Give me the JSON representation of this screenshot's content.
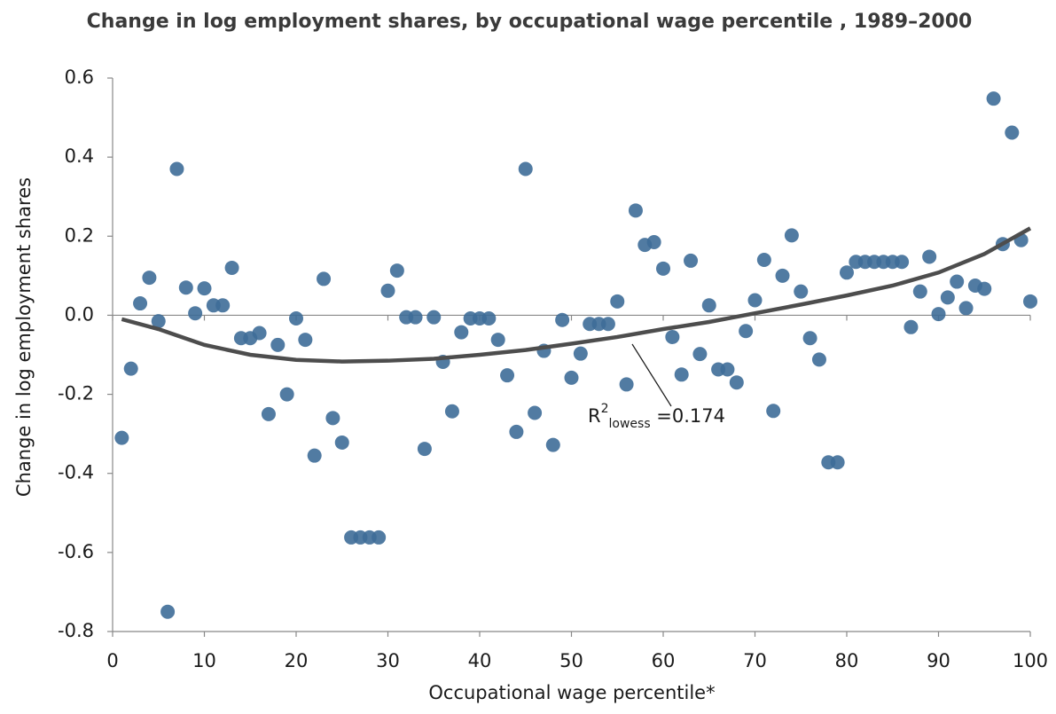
{
  "chart_data": {
    "type": "scatter",
    "title": "Change in log employment shares, by occupational wage percentile , 1989–2000",
    "x_label": "Occupational wage percentile*",
    "y_label": "Change in log employment shares",
    "xlim": [
      0,
      100
    ],
    "xticks": [
      0,
      10,
      20,
      30,
      40,
      50,
      60,
      70,
      80,
      90,
      100
    ],
    "ylim": [
      -0.8,
      0.6
    ],
    "yticks": [
      -0.8,
      -0.6,
      -0.4,
      -0.2,
      {
        "value": 0,
        "label": "0.0"
      },
      0.2,
      0.4,
      0.6
    ],
    "series": [
      {
        "color": "#3e6d98",
        "x": [
          1,
          2,
          3,
          4,
          5,
          6,
          7,
          8,
          9,
          10,
          11,
          12,
          13,
          14,
          15,
          16,
          17,
          18,
          19,
          20,
          21,
          22,
          23,
          24,
          25,
          26,
          27,
          28,
          29,
          30,
          31,
          32,
          33,
          34,
          35,
          36,
          37,
          38,
          39,
          40,
          41,
          42,
          43,
          44,
          45,
          46,
          47,
          48,
          49,
          50,
          51,
          52,
          53,
          54,
          55,
          56,
          57,
          58,
          59,
          60,
          61,
          62,
          63,
          64,
          65,
          66,
          67,
          68,
          69,
          70,
          71,
          72,
          73,
          74,
          75,
          76,
          77,
          78,
          79,
          80,
          81,
          82,
          83,
          84,
          85,
          86,
          87,
          88,
          89,
          90,
          91,
          92,
          93,
          94,
          95,
          96,
          97,
          98,
          99,
          100
        ],
        "values": [
          -0.31,
          -0.135,
          0.03,
          0.095,
          -0.015,
          -0.75,
          0.37,
          0.07,
          0.005,
          0.068,
          0.025,
          0.025,
          0.12,
          -0.058,
          -0.058,
          -0.045,
          -0.25,
          -0.075,
          -0.2,
          -0.008,
          -0.062,
          -0.355,
          0.092,
          -0.26,
          -0.322,
          -0.562,
          -0.562,
          -0.562,
          -0.562,
          0.062,
          0.113,
          -0.005,
          -0.005,
          -0.338,
          -0.005,
          -0.118,
          -0.243,
          -0.043,
          -0.008,
          -0.008,
          -0.008,
          -0.062,
          -0.152,
          -0.295,
          0.37,
          -0.247,
          -0.09,
          -0.328,
          -0.012,
          -0.158,
          -0.097,
          -0.022,
          -0.022,
          -0.022,
          0.035,
          -0.175,
          0.265,
          0.178,
          0.185,
          0.118,
          -0.055,
          -0.15,
          0.138,
          -0.098,
          0.025,
          -0.137,
          -0.137,
          -0.17,
          -0.04,
          0.038,
          0.14,
          -0.242,
          0.1,
          0.202,
          0.06,
          -0.058,
          -0.112,
          -0.372,
          -0.372,
          0.108,
          0.135,
          0.135,
          0.135,
          0.135,
          0.135,
          0.135,
          -0.03,
          0.06,
          0.148,
          0.003,
          0.045,
          0.085,
          0.018,
          0.075,
          0.067,
          0.548,
          0.18,
          0.462,
          0.19,
          0.035
        ]
      }
    ],
    "lowess": {
      "color": "#4d4d4d",
      "x": [
        1,
        5,
        10,
        15,
        20,
        25,
        30,
        35,
        40,
        45,
        50,
        55,
        60,
        65,
        70,
        75,
        80,
        85,
        90,
        95,
        100
      ],
      "values": [
        -0.01,
        -0.035,
        -0.075,
        -0.1,
        -0.113,
        -0.117,
        -0.115,
        -0.11,
        -0.1,
        -0.088,
        -0.072,
        -0.055,
        -0.035,
        -0.017,
        0.005,
        0.027,
        0.05,
        0.075,
        0.108,
        0.155,
        0.22
      ]
    },
    "annotation": [
      "R",
      "2",
      "lowess",
      " =0.174"
    ]
  }
}
